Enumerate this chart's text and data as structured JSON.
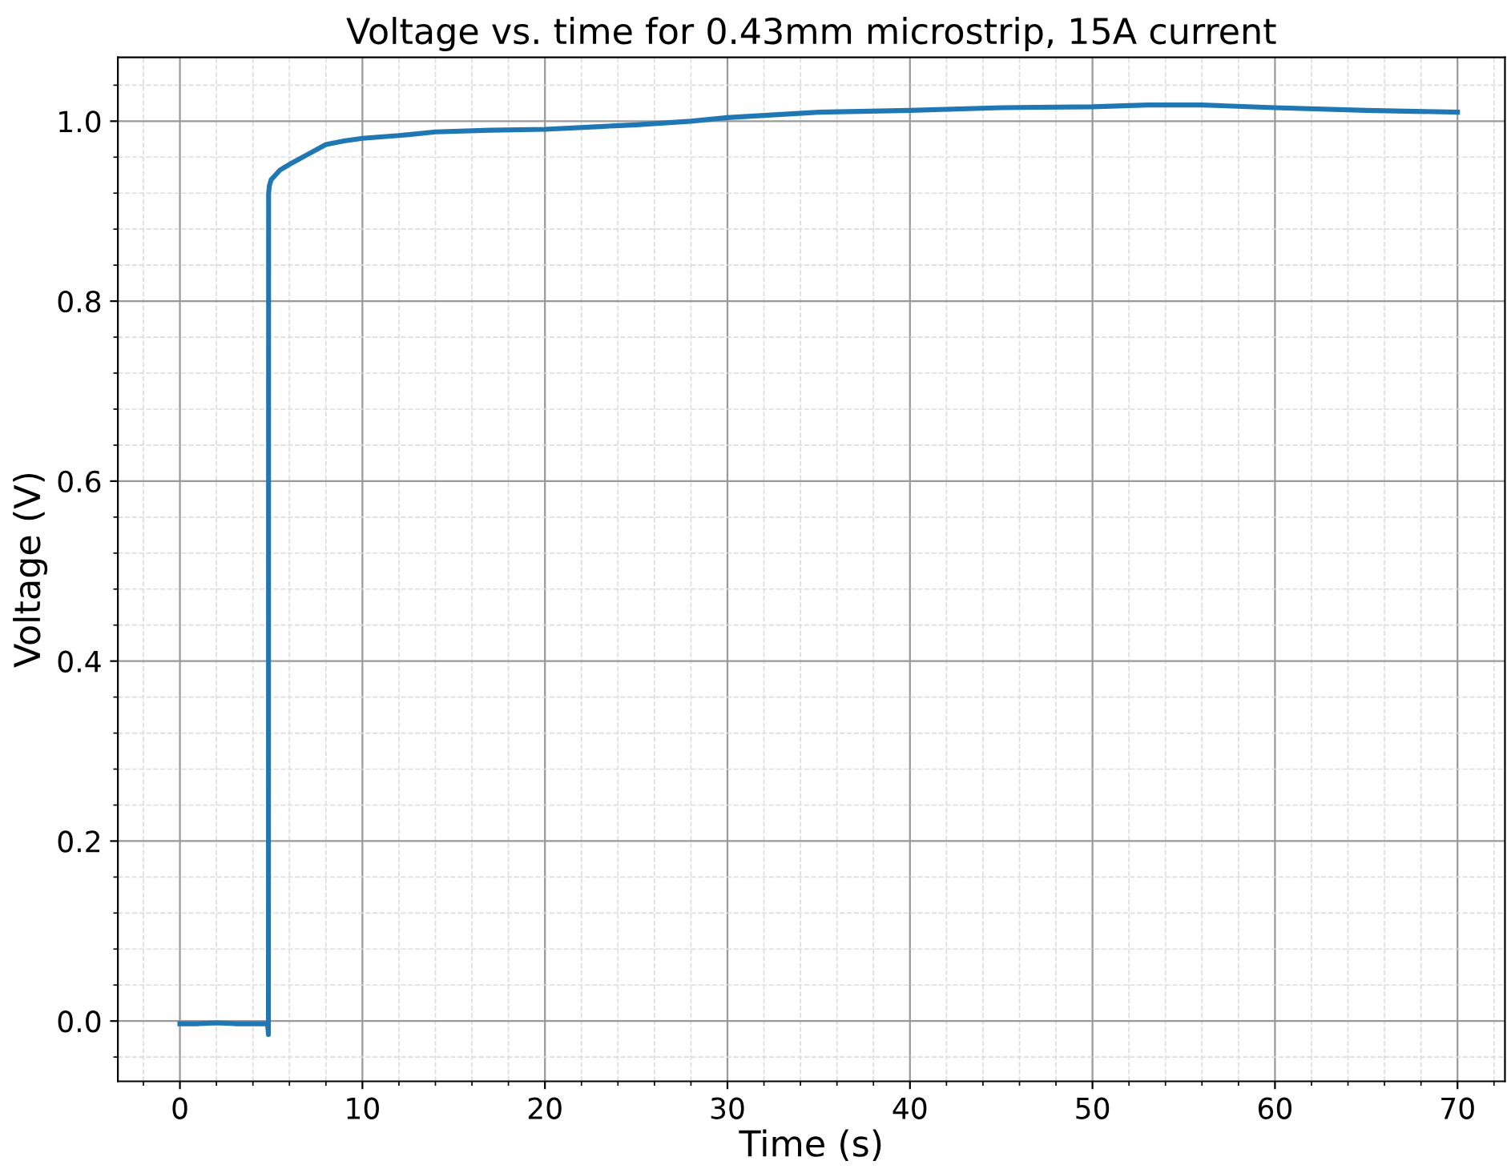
{
  "chart_data": {
    "type": "line",
    "title": "Voltage vs. time for 0.43mm microstrip, 15A current",
    "xlabel": "Time (s)",
    "ylabel": "Voltage (V)",
    "xlim": [
      -3.4,
      72.6
    ],
    "ylim": [
      -0.067,
      1.071
    ],
    "xticks": [
      0,
      10,
      20,
      30,
      40,
      50,
      60,
      70
    ],
    "yticks": [
      {
        "value": 0,
        "label": "0.0"
      },
      0.2,
      0.4,
      0.6,
      0.8,
      {
        "value": 1,
        "label": "1.0"
      }
    ],
    "grid": true,
    "series": [
      {
        "color": "#1f77b4",
        "x": [
          0,
          1,
          2,
          3,
          4,
          4.8,
          4.85,
          4.86,
          4.9,
          5.0,
          5.5,
          6,
          7,
          8,
          9,
          10,
          12,
          14,
          17,
          20,
          23,
          25,
          28,
          30,
          35,
          40,
          45,
          50,
          53,
          56,
          60,
          65,
          70
        ],
        "values": [
          -0.003,
          -0.003,
          -0.002,
          -0.003,
          -0.003,
          -0.003,
          -0.015,
          0.92,
          0.928,
          0.935,
          0.946,
          0.952,
          0.963,
          0.974,
          0.978,
          0.981,
          0.984,
          0.988,
          0.99,
          0.991,
          0.994,
          0.996,
          1.0,
          1.004,
          1.01,
          1.012,
          1.015,
          1.016,
          1.018,
          1.018,
          1.015,
          1.012,
          1.01
        ]
      }
    ]
  }
}
